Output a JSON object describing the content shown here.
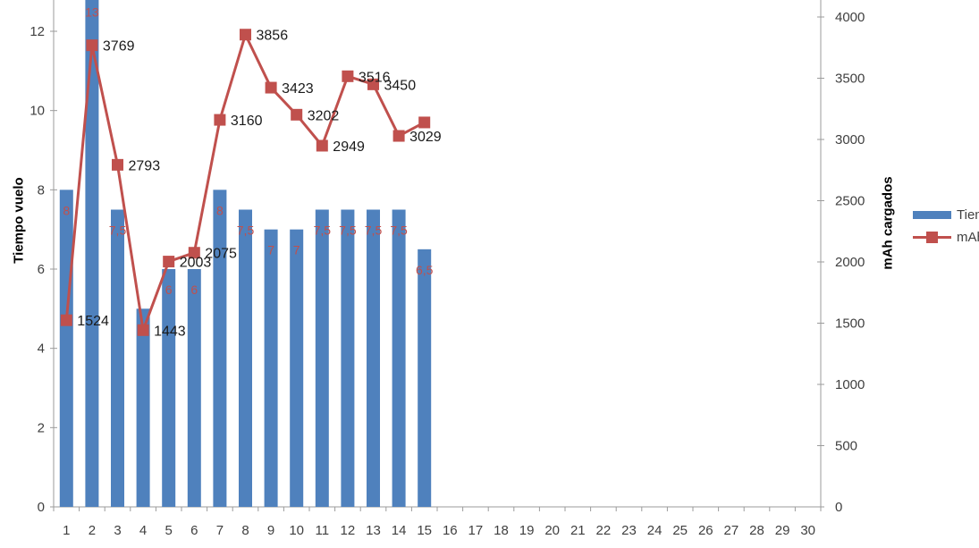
{
  "chart_data": {
    "type": "combo_bar_line",
    "title": "",
    "categories": [
      "1",
      "2",
      "3",
      "4",
      "5",
      "6",
      "7",
      "8",
      "9",
      "10",
      "11",
      "12",
      "13",
      "14",
      "15",
      "16",
      "17",
      "18",
      "19",
      "20",
      "21",
      "22",
      "23",
      "24",
      "25",
      "26",
      "27",
      "28",
      "29",
      "30"
    ],
    "series": [
      {
        "name": "Tiempo vuelo",
        "type": "bar",
        "axis": "left",
        "color": "#4F81BD",
        "values": [
          8,
          13,
          7.5,
          5,
          6,
          6,
          8,
          7.5,
          7,
          7,
          7.5,
          7.5,
          7.5,
          7.5,
          6.5
        ],
        "labels": [
          "8",
          "13",
          "7,5",
          "5",
          "6",
          "6",
          "8",
          "7,5",
          "7",
          "7",
          "7,5",
          "7,5",
          "7,5",
          "7,5",
          "6,5"
        ],
        "label_color": "#C0504D"
      },
      {
        "name": "mAh cargados",
        "type": "line",
        "axis": "right",
        "color": "#C0504D",
        "values": [
          1524,
          3769,
          2793,
          1443,
          2003,
          2075,
          3160,
          3856,
          3423,
          3202,
          2949,
          3516,
          3450,
          3029,
          3139
        ],
        "labels": [
          "1524",
          "3769",
          "2793",
          "1443",
          "2003",
          "2075",
          "3160",
          "3856",
          "3423",
          "3202",
          "2949",
          "3516",
          "3450",
          "3029",
          ""
        ],
        "label_color": "#1a1a1a"
      }
    ],
    "left_axis": {
      "label": "Tiempo vuelo",
      "tick_values": [
        0,
        2,
        4,
        6,
        8,
        10,
        12
      ],
      "range_visible": [
        0,
        12.8
      ]
    },
    "right_axis": {
      "label": "mAh cargados",
      "tick_values": [
        0,
        500,
        1000,
        1500,
        2000,
        2500,
        3000,
        3500,
        4000
      ],
      "range": [
        0,
        4000
      ]
    },
    "legend": {
      "position": "right",
      "clipped_by_viewport": true,
      "entries": [
        "Tiempo vuelo",
        "mAh cargados"
      ]
    },
    "grid": false,
    "axis_color": "#9b9b9b",
    "tick_label_color": "#3f3f3f"
  }
}
